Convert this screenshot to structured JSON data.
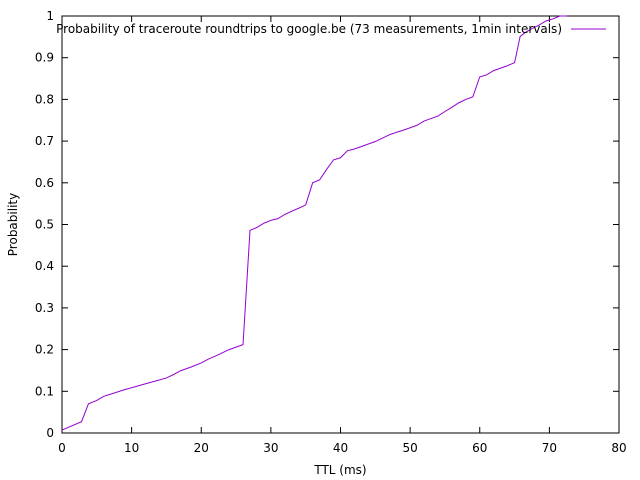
{
  "chart_data": {
    "type": "line",
    "title": "",
    "xlabel": "TTL (ms)",
    "ylabel": "Probability",
    "xlim": [
      0,
      80
    ],
    "ylim": [
      0,
      1
    ],
    "xticks": [
      0,
      10,
      20,
      30,
      40,
      50,
      60,
      70,
      80
    ],
    "yticks": [
      0,
      0.1,
      0.2,
      0.3,
      0.4,
      0.5,
      0.6,
      0.7,
      0.8,
      0.9,
      1
    ],
    "grid": false,
    "legend_position": "top-right",
    "series": [
      {
        "name": "Probability of traceroute roundtrips to google.be (73 measurements, 1min intervals)",
        "color": "#9400d3",
        "x": [
          0,
          2.8,
          3.8,
          5,
          6,
          7.5,
          9,
          10.5,
          12,
          13.5,
          15,
          16,
          17,
          18.5,
          20,
          21,
          22.5,
          24,
          26,
          27,
          28,
          29,
          30,
          31,
          32,
          33,
          34,
          35,
          36,
          37,
          38,
          39,
          40,
          41,
          42,
          43,
          44,
          45,
          46,
          47,
          48,
          49,
          50,
          51,
          52,
          53,
          54,
          55,
          56,
          57,
          58,
          59,
          60,
          61,
          62,
          63,
          64,
          65,
          65.8,
          66.5,
          67.5,
          68.5,
          69.5,
          70.5,
          71.5,
          72.5
        ],
        "y": [
          0.007,
          0.027,
          0.07,
          0.078,
          0.088,
          0.096,
          0.104,
          0.111,
          0.118,
          0.125,
          0.132,
          0.14,
          0.149,
          0.158,
          0.168,
          0.177,
          0.188,
          0.2,
          0.212,
          0.486,
          0.493,
          0.503,
          0.51,
          0.514,
          0.524,
          0.532,
          0.539,
          0.547,
          0.6,
          0.607,
          0.632,
          0.655,
          0.66,
          0.677,
          0.681,
          0.687,
          0.693,
          0.699,
          0.707,
          0.715,
          0.721,
          0.726,
          0.732,
          0.738,
          0.748,
          0.754,
          0.76,
          0.771,
          0.781,
          0.792,
          0.8,
          0.806,
          0.854,
          0.859,
          0.869,
          0.875,
          0.881,
          0.888,
          0.951,
          0.96,
          0.97,
          0.978,
          0.988,
          0.993,
          1.0,
          1.0
        ]
      }
    ]
  }
}
